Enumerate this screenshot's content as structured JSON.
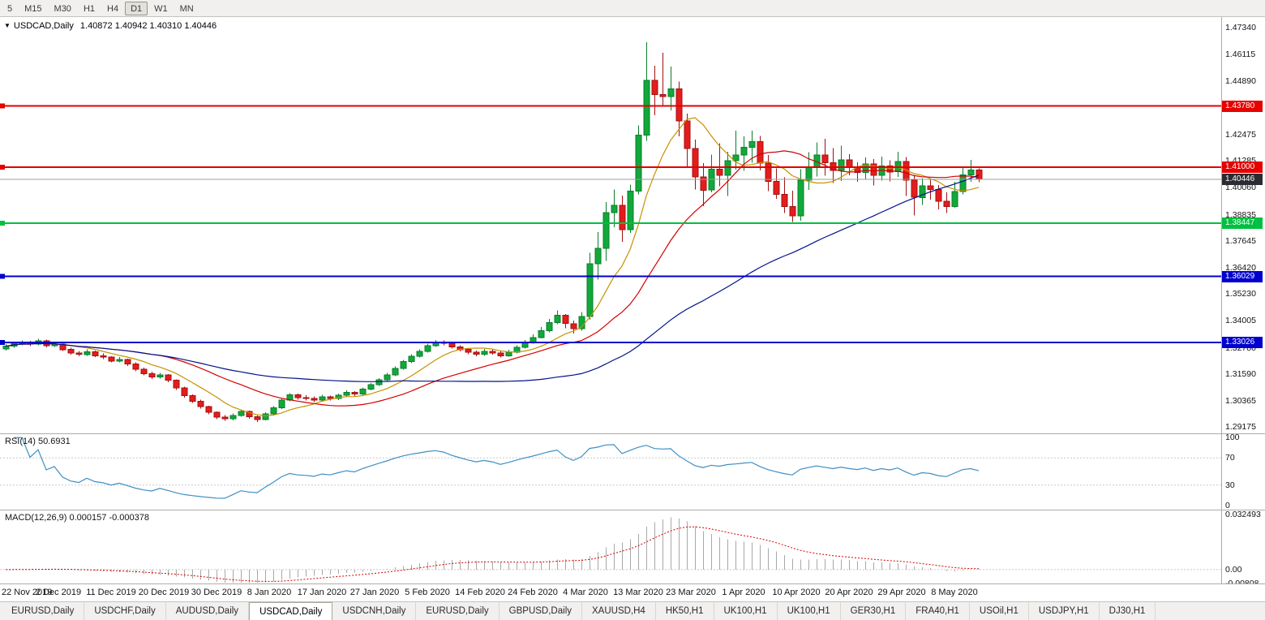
{
  "toolbar": {
    "timeframes": [
      {
        "label": "5",
        "active": false
      },
      {
        "label": "M15",
        "active": false
      },
      {
        "label": "M30",
        "active": false
      },
      {
        "label": "H1",
        "active": false
      },
      {
        "label": "H4",
        "active": false
      },
      {
        "label": "D1",
        "active": true
      },
      {
        "label": "W1",
        "active": false
      },
      {
        "label": "MN",
        "active": false
      }
    ]
  },
  "icons": {
    "chart_dropdown": "▼"
  },
  "chart": {
    "symbol": "USDCAD,Daily",
    "ohlc": "1.40872 1.40942 1.40310 1.40446",
    "open": "1.40872",
    "high": "1.40942",
    "low": "1.40310",
    "close": "1.40446"
  },
  "chart_data": {
    "type": "candlestick",
    "symbol": "USDCAD",
    "timeframe": "Daily",
    "title": "USDCAD,Daily",
    "colors": {
      "up": "#10a93a",
      "up_border": "#0b7d2b",
      "down": "#e51c1c",
      "down_border": "#a11212"
    },
    "price_axis": {
      "top": 1.4782,
      "bottom": 1.2889,
      "labels": [
        "1.47340",
        "1.46115",
        "1.44890",
        "1.43665",
        "1.42475",
        "1.41285",
        "1.40060",
        "1.38835",
        "1.37645",
        "1.36420",
        "1.35230",
        "1.34005",
        "1.32780",
        "1.31590",
        "1.30365",
        "1.29175"
      ]
    },
    "hlines": [
      {
        "price": 1.4378,
        "label": "1.43780",
        "color": "#e60000"
      },
      {
        "price": 1.41,
        "label": "1.41000",
        "color": "#e60000"
      },
      {
        "price": 1.38447,
        "label": "1.38447",
        "color": "#00c040"
      },
      {
        "price": 1.36029,
        "label": "1.36029",
        "color": "#0000cd"
      },
      {
        "price": 1.33026,
        "label": "1.33026",
        "color": "#0000cd"
      }
    ],
    "current_price": {
      "value": 1.40446,
      "label": "1.40446",
      "line_color": "#9c9c9c",
      "tag_color": "#2b2b33"
    },
    "moving_averages": [
      {
        "period": 8,
        "color": "#c79100"
      },
      {
        "period": 20,
        "color": "#d40000"
      },
      {
        "period": 50,
        "color": "#00128b"
      }
    ],
    "x_labels": [
      {
        "t": "22 Nov 2019",
        "i": 0
      },
      {
        "t": "2 Dec 2019",
        "i": 6.5
      },
      {
        "t": "11 Dec 2019",
        "i": 13
      },
      {
        "t": "20 Dec 2019",
        "i": 19.5
      },
      {
        "t": "30 Dec 2019",
        "i": 26
      },
      {
        "t": "8 Jan 2020",
        "i": 32.5
      },
      {
        "t": "17 Jan 2020",
        "i": 39
      },
      {
        "t": "27 Jan 2020",
        "i": 45.5
      },
      {
        "t": "5 Feb 2020",
        "i": 52
      },
      {
        "t": "14 Feb 2020",
        "i": 58.5
      },
      {
        "t": "24 Feb 2020",
        "i": 65
      },
      {
        "t": "4 Mar 2020",
        "i": 71.5
      },
      {
        "t": "13 Mar 2020",
        "i": 78
      },
      {
        "t": "23 Mar 2020",
        "i": 84.5
      },
      {
        "t": "1 Apr 2020",
        "i": 91
      },
      {
        "t": "10 Apr 2020",
        "i": 97.5
      },
      {
        "t": "20 Apr 2020",
        "i": 104
      },
      {
        "t": "29 Apr 2020",
        "i": 110.5
      },
      {
        "t": "8 May 2020",
        "i": 117
      }
    ],
    "candles": [
      [
        1.3272,
        1.3295,
        1.3266,
        1.3285
      ],
      [
        1.3285,
        1.3306,
        1.3279,
        1.3298
      ],
      [
        1.3298,
        1.3312,
        1.329,
        1.3302
      ],
      [
        1.3302,
        1.331,
        1.3286,
        1.3295
      ],
      [
        1.3295,
        1.3318,
        1.3289,
        1.331
      ],
      [
        1.331,
        1.3315,
        1.3281,
        1.3288
      ],
      [
        1.3288,
        1.3304,
        1.3282,
        1.3295
      ],
      [
        1.3295,
        1.3301,
        1.3263,
        1.327
      ],
      [
        1.327,
        1.3278,
        1.3247,
        1.3255
      ],
      [
        1.3255,
        1.3264,
        1.3239,
        1.3248
      ],
      [
        1.3248,
        1.327,
        1.3242,
        1.326
      ],
      [
        1.326,
        1.3266,
        1.3236,
        1.3242
      ],
      [
        1.3242,
        1.3253,
        1.3226,
        1.3235
      ],
      [
        1.3235,
        1.324,
        1.3211,
        1.3218
      ],
      [
        1.3218,
        1.3235,
        1.3212,
        1.3225
      ],
      [
        1.3225,
        1.3229,
        1.3196,
        1.3205
      ],
      [
        1.3205,
        1.3211,
        1.3171,
        1.318
      ],
      [
        1.318,
        1.3187,
        1.3152,
        1.316
      ],
      [
        1.316,
        1.317,
        1.3137,
        1.3145
      ],
      [
        1.3145,
        1.3164,
        1.3138,
        1.3155
      ],
      [
        1.3155,
        1.3159,
        1.3121,
        1.313
      ],
      [
        1.313,
        1.3134,
        1.3087,
        1.3095
      ],
      [
        1.3095,
        1.3101,
        1.3052,
        1.306
      ],
      [
        1.306,
        1.3066,
        1.3027,
        1.3035
      ],
      [
        1.3035,
        1.3042,
        1.3002,
        1.301
      ],
      [
        1.301,
        1.3015,
        1.2976,
        1.2985
      ],
      [
        1.2985,
        1.2989,
        1.2953,
        1.2962
      ],
      [
        1.2962,
        1.2972,
        1.2946,
        1.2955
      ],
      [
        1.2955,
        1.298,
        1.2948,
        1.297
      ],
      [
        1.297,
        1.2996,
        1.2964,
        1.2988
      ],
      [
        1.2988,
        1.2993,
        1.2956,
        1.2965
      ],
      [
        1.2965,
        1.297,
        1.294,
        1.2952
      ],
      [
        1.2952,
        1.2985,
        1.2948,
        1.2978
      ],
      [
        1.2978,
        1.3012,
        1.2972,
        1.3005
      ],
      [
        1.3005,
        1.3048,
        1.3,
        1.304
      ],
      [
        1.304,
        1.3072,
        1.3034,
        1.3065
      ],
      [
        1.3065,
        1.307,
        1.3042,
        1.3052
      ],
      [
        1.3052,
        1.3062,
        1.3039,
        1.3048
      ],
      [
        1.3048,
        1.3056,
        1.3031,
        1.304
      ],
      [
        1.304,
        1.3064,
        1.3033,
        1.3055
      ],
      [
        1.3055,
        1.3061,
        1.3038,
        1.3048
      ],
      [
        1.3048,
        1.307,
        1.3041,
        1.3062
      ],
      [
        1.3062,
        1.3084,
        1.3056,
        1.3075
      ],
      [
        1.3075,
        1.308,
        1.3055,
        1.3068
      ],
      [
        1.3068,
        1.3098,
        1.3062,
        1.309
      ],
      [
        1.309,
        1.3118,
        1.3084,
        1.311
      ],
      [
        1.311,
        1.314,
        1.3104,
        1.3132
      ],
      [
        1.3132,
        1.3163,
        1.3126,
        1.3155
      ],
      [
        1.3155,
        1.3193,
        1.315,
        1.3185
      ],
      [
        1.3185,
        1.3223,
        1.3179,
        1.3215
      ],
      [
        1.3215,
        1.3248,
        1.3209,
        1.324
      ],
      [
        1.324,
        1.327,
        1.3234,
        1.3262
      ],
      [
        1.3262,
        1.3296,
        1.3256,
        1.3288
      ],
      [
        1.3288,
        1.3313,
        1.3282,
        1.3305
      ],
      [
        1.3305,
        1.3312,
        1.329,
        1.3298
      ],
      [
        1.3298,
        1.3303,
        1.3274,
        1.3282
      ],
      [
        1.3282,
        1.3289,
        1.3261,
        1.327
      ],
      [
        1.327,
        1.3276,
        1.3249,
        1.3258
      ],
      [
        1.3258,
        1.3266,
        1.324,
        1.3248
      ],
      [
        1.3248,
        1.3272,
        1.3242,
        1.3262
      ],
      [
        1.3262,
        1.327,
        1.3247,
        1.3255
      ],
      [
        1.3255,
        1.3261,
        1.3234,
        1.3242
      ],
      [
        1.3242,
        1.3269,
        1.3237,
        1.3258
      ],
      [
        1.3258,
        1.329,
        1.3252,
        1.328
      ],
      [
        1.328,
        1.3314,
        1.3275,
        1.3302
      ],
      [
        1.3302,
        1.3339,
        1.3297,
        1.3325
      ],
      [
        1.3325,
        1.3372,
        1.332,
        1.3355
      ],
      [
        1.3355,
        1.341,
        1.3349,
        1.3392
      ],
      [
        1.3392,
        1.3448,
        1.3385,
        1.3425
      ],
      [
        1.3425,
        1.3432,
        1.3366,
        1.3388
      ],
      [
        1.3388,
        1.3402,
        1.3343,
        1.3365
      ],
      [
        1.3365,
        1.344,
        1.3356,
        1.342
      ],
      [
        1.342,
        1.371,
        1.3405,
        1.366
      ],
      [
        1.366,
        1.3805,
        1.3589,
        1.373
      ],
      [
        1.373,
        1.394,
        1.3673,
        1.3892
      ],
      [
        1.3892,
        1.3998,
        1.3827,
        1.3925
      ],
      [
        1.3925,
        1.397,
        1.376,
        1.3815
      ],
      [
        1.3815,
        1.402,
        1.38,
        1.399
      ],
      [
        1.399,
        1.429,
        1.3975,
        1.4245
      ],
      [
        1.4245,
        1.4668,
        1.422,
        1.4495
      ],
      [
        1.4495,
        1.4561,
        1.4336,
        1.443
      ],
      [
        1.443,
        1.4619,
        1.4375,
        1.442
      ],
      [
        1.442,
        1.4557,
        1.4358,
        1.4455
      ],
      [
        1.4455,
        1.4488,
        1.424,
        1.431
      ],
      [
        1.431,
        1.4343,
        1.4098,
        1.4185
      ],
      [
        1.4185,
        1.4224,
        1.3997,
        1.4055
      ],
      [
        1.4055,
        1.4118,
        1.3922,
        1.3995
      ],
      [
        1.3995,
        1.4156,
        1.3985,
        1.409
      ],
      [
        1.409,
        1.4208,
        1.4013,
        1.4062
      ],
      [
        1.4062,
        1.417,
        1.3968,
        1.4128
      ],
      [
        1.4128,
        1.4265,
        1.4088,
        1.4155
      ],
      [
        1.4155,
        1.424,
        1.4082,
        1.419
      ],
      [
        1.419,
        1.4265,
        1.412,
        1.4215
      ],
      [
        1.4215,
        1.4242,
        1.4085,
        1.4118
      ],
      [
        1.4118,
        1.4155,
        1.399,
        1.4035
      ],
      [
        1.4035,
        1.4094,
        1.3955,
        1.3975
      ],
      [
        1.3975,
        1.4054,
        1.389,
        1.392
      ],
      [
        1.392,
        1.3992,
        1.385,
        1.3878
      ],
      [
        1.3878,
        1.409,
        1.3855,
        1.404
      ],
      [
        1.404,
        1.4167,
        1.3996,
        1.4098
      ],
      [
        1.4098,
        1.4211,
        1.4056,
        1.4155
      ],
      [
        1.4155,
        1.4228,
        1.406,
        1.412
      ],
      [
        1.412,
        1.4186,
        1.4028,
        1.4085
      ],
      [
        1.4085,
        1.4198,
        1.4037,
        1.4132
      ],
      [
        1.4132,
        1.4159,
        1.4063,
        1.4098
      ],
      [
        1.4098,
        1.4121,
        1.4033,
        1.4075
      ],
      [
        1.4075,
        1.4144,
        1.4042,
        1.4115
      ],
      [
        1.4115,
        1.4136,
        1.4016,
        1.4062
      ],
      [
        1.4062,
        1.4148,
        1.4039,
        1.4105
      ],
      [
        1.4105,
        1.413,
        1.4034,
        1.4078
      ],
      [
        1.4078,
        1.417,
        1.4055,
        1.4125
      ],
      [
        1.4125,
        1.4146,
        1.3968,
        1.404
      ],
      [
        1.404,
        1.4064,
        1.388,
        1.3962
      ],
      [
        1.3962,
        1.405,
        1.3928,
        1.4015
      ],
      [
        1.4015,
        1.4048,
        1.3951,
        1.3998
      ],
      [
        1.3998,
        1.4019,
        1.3908,
        1.3945
      ],
      [
        1.3945,
        1.3985,
        1.389,
        1.392
      ],
      [
        1.392,
        1.4033,
        1.3915,
        1.3988
      ],
      [
        1.3988,
        1.41,
        1.3975,
        1.4065
      ],
      [
        1.4065,
        1.4133,
        1.4033,
        1.4087
      ],
      [
        1.40872,
        1.40942,
        1.4031,
        1.40446
      ]
    ],
    "rsi": {
      "label": "RSI(14) 50.6931",
      "period": 14,
      "value": 50.6931,
      "color": "#3f8fc4",
      "levels": [
        70,
        30
      ],
      "axis_labels": [
        {
          "v": 100,
          "t": "100"
        },
        {
          "v": 70,
          "t": "70"
        },
        {
          "v": 30,
          "t": "30"
        },
        {
          "v": 0,
          "t": "0"
        }
      ],
      "value_top": 105,
      "value_bottom": -6
    },
    "macd": {
      "label": "MACD(12,26,9) 0.000157 -0.000378",
      "fast": 12,
      "slow": 26,
      "signal": 9,
      "main_value": 0.000157,
      "signal_value": -0.000378,
      "histogram_color": "#a8a8a8",
      "signal_color": "#d40000",
      "axis_labels": [
        {
          "v": 0.032493,
          "t": "0.032493"
        },
        {
          "v": 0,
          "t": "0.00"
        },
        {
          "v": -0.00808,
          "t": "-0.00808"
        }
      ],
      "value_top": 0.0349,
      "value_bottom": -0.0082
    }
  },
  "tabs": [
    {
      "label": "EURUSD,Daily",
      "active": false
    },
    {
      "label": "USDCHF,Daily",
      "active": false
    },
    {
      "label": "AUDUSD,Daily",
      "active": false
    },
    {
      "label": "USDCAD,Daily",
      "active": true
    },
    {
      "label": "USDCNH,Daily",
      "active": false
    },
    {
      "label": "EURUSD,Daily",
      "active": false
    },
    {
      "label": "GBPUSD,Daily",
      "active": false
    },
    {
      "label": "XAUUSD,H4",
      "active": false
    },
    {
      "label": "HK50,H1",
      "active": false
    },
    {
      "label": "UK100,H1",
      "active": false
    },
    {
      "label": "UK100,H1",
      "active": false
    },
    {
      "label": "GER30,H1",
      "active": false
    },
    {
      "label": "FRA40,H1",
      "active": false
    },
    {
      "label": "USOil,H1",
      "active": false
    },
    {
      "label": "USDJPY,H1",
      "active": false
    },
    {
      "label": "DJ30,H1",
      "active": false
    }
  ]
}
